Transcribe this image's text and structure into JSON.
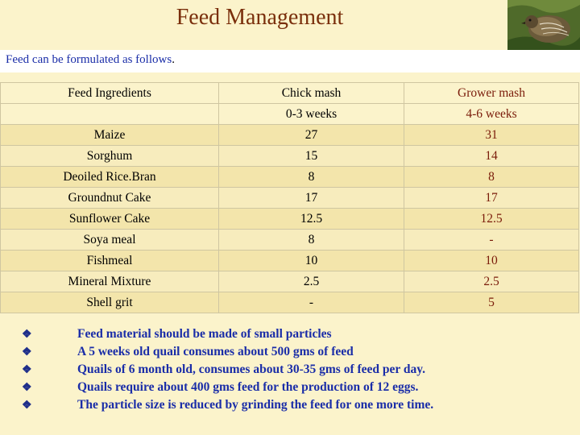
{
  "header": {
    "title": "Feed Management",
    "image": "quail-photo"
  },
  "intro": {
    "text": "Feed can be formulated as follows",
    "end": "."
  },
  "table": {
    "headers": {
      "ingredients": "Feed Ingredients",
      "chick": "Chick mash",
      "chick_age": "0-3 weeks",
      "grower": "Grower mash",
      "grower_age": "4-6 weeks"
    },
    "rows": [
      {
        "ingredient": "Maize",
        "chick": "27",
        "grower": "31"
      },
      {
        "ingredient": "Sorghum",
        "chick": "15",
        "grower": "14"
      },
      {
        "ingredient": "Deoiled Rice.Bran",
        "chick": "8",
        "grower": "8"
      },
      {
        "ingredient": "Groundnut Cake",
        "chick": "17",
        "grower": "17"
      },
      {
        "ingredient": "Sunflower Cake",
        "chick": "12.5",
        "grower": "12.5"
      },
      {
        "ingredient": "Soya meal",
        "chick": "8",
        "grower": "-"
      },
      {
        "ingredient": "Fishmeal",
        "chick": "10",
        "grower": "10"
      },
      {
        "ingredient": "Mineral Mixture",
        "chick": "2.5",
        "grower": "2.5"
      },
      {
        "ingredient": "Shell grit",
        "chick": "-",
        "grower": "5"
      }
    ]
  },
  "notes": {
    "bullet_icon": "diamond-clover-bullet-icon",
    "items": [
      "Feed material should be made of small particles",
      "A  5 weeks old quail consumes about 500 gms of feed",
      "Quails of 6 month old, consumes about 30-35 gms of feed per day.",
      "Quails require about 400 gms feed for the production of 12 eggs.",
      "The particle size is reduced by grinding the feed for one more time."
    ]
  }
}
